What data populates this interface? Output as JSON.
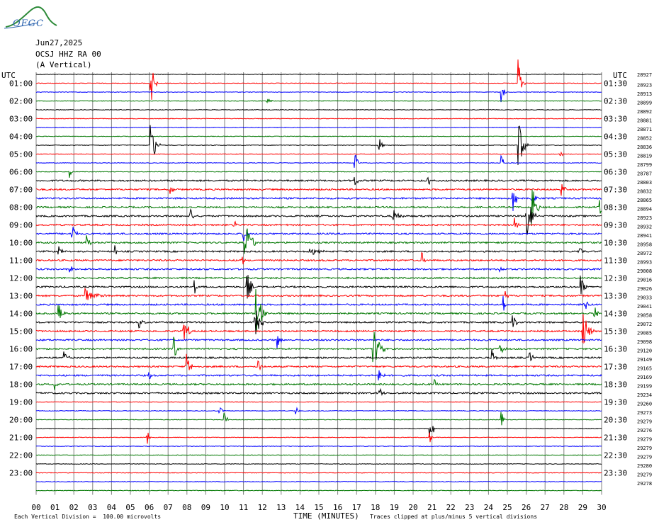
{
  "header": {
    "logo_text": "OFGC",
    "date": "Jun27,2025",
    "station": "OCSJ HHZ RA 00",
    "component": "(A Vertical)",
    "utc_left": "UTC",
    "utc_right": "UTC"
  },
  "footer": {
    "scale_note": "Each Vertical Division =  100.00 microvolts",
    "x_axis_title": "TIME (MINUTES)",
    "clip_note": "Traces clipped at plus/minus 5 vertical divisions"
  },
  "colors": {
    "trace_cycle": [
      "#000000",
      "#ff0000",
      "#0000ff",
      "#007700"
    ],
    "grid": "#808080",
    "logo": "#2f66b0"
  },
  "chart_data": {
    "type": "line",
    "title": "",
    "x_label": "TIME (MINUTES)",
    "x_range": [
      0,
      30
    ],
    "x_ticks": [
      "00",
      "01",
      "02",
      "03",
      "04",
      "05",
      "06",
      "07",
      "08",
      "09",
      "10",
      "11",
      "12",
      "13",
      "14",
      "15",
      "16",
      "17",
      "18",
      "19",
      "20",
      "21",
      "22",
      "23",
      "24",
      "25",
      "26",
      "27",
      "28",
      "29",
      "30"
    ],
    "left_hour_labels": [
      "01:00",
      "02:00",
      "03:00",
      "04:00",
      "05:00",
      "06:00",
      "07:00",
      "08:00",
      "09:00",
      "10:00",
      "11:00",
      "12:00",
      "13:00",
      "14:00",
      "15:00",
      "16:00",
      "17:00",
      "18:00",
      "19:00",
      "20:00",
      "21:00",
      "22:00",
      "23:00"
    ],
    "right_hour_labels": [
      "01:30",
      "02:30",
      "03:30",
      "04:30",
      "05:30",
      "06:30",
      "07:30",
      "08:30",
      "09:30",
      "10:30",
      "11:30",
      "12:30",
      "13:30",
      "14:30",
      "15:30",
      "16:30",
      "17:30",
      "18:30",
      "19:30",
      "20:30",
      "21:30",
      "22:30",
      "23:30"
    ],
    "traces_per_hour": 2,
    "trace_count": 48,
    "right_values": [
      "28927",
      "28923",
      "28913",
      "28899",
      "28892",
      "28881",
      "28871",
      "28852",
      "28836",
      "28819",
      "28799",
      "28787",
      "28803",
      "28832",
      "28865",
      "28894",
      "28923",
      "28932",
      "28941",
      "28958",
      "28972",
      "28993",
      "29008",
      "29016",
      "29026",
      "29033",
      "29041",
      "29058",
      "29072",
      "29085",
      "29098",
      "29120",
      "29149",
      "29165",
      "29169",
      "29199",
      "29234",
      "29260",
      "29273",
      "29279",
      "29276",
      "29279",
      "29279",
      "29279",
      "29280",
      "29279",
      "29278"
    ],
    "events": [
      {
        "trace": 1,
        "minute": 6.1,
        "amp": 5,
        "width": 0.35
      },
      {
        "trace": 1,
        "minute": 25.6,
        "amp": 5,
        "width": 0.35
      },
      {
        "trace": 2,
        "minute": 24.7,
        "amp": 2.2,
        "width": 0.25
      },
      {
        "trace": 3,
        "minute": 12.3,
        "amp": 1,
        "width": 0.3
      },
      {
        "trace": 8,
        "minute": 6.1,
        "amp": 5,
        "width": 0.5
      },
      {
        "trace": 8,
        "minute": 18.2,
        "amp": 1.8,
        "width": 0.3
      },
      {
        "trace": 8,
        "minute": 25.6,
        "amp": 5,
        "width": 0.5
      },
      {
        "trace": 9,
        "minute": 27.8,
        "amp": 1.6,
        "width": 0.2
      },
      {
        "trace": 10,
        "minute": 16.9,
        "amp": 2.5,
        "width": 0.3
      },
      {
        "trace": 10,
        "minute": 24.7,
        "amp": 1.5,
        "width": 0.3
      },
      {
        "trace": 11,
        "minute": 1.8,
        "amp": 1.2,
        "width": 0.2
      },
      {
        "trace": 12,
        "minute": 16.9,
        "amp": 1.5,
        "width": 0.3
      },
      {
        "trace": 12,
        "minute": 20.8,
        "amp": 1.6,
        "width": 0.3
      },
      {
        "trace": 13,
        "minute": 7.1,
        "amp": 1.5,
        "width": 0.3
      },
      {
        "trace": 13,
        "minute": 27.9,
        "amp": 1.5,
        "width": 0.3
      },
      {
        "trace": 14,
        "minute": 25.3,
        "amp": 3,
        "width": 0.4
      },
      {
        "trace": 14,
        "minute": 26.3,
        "amp": 2.5,
        "width": 0.4
      },
      {
        "trace": 15,
        "minute": 26.3,
        "amp": 5,
        "width": 0.5
      },
      {
        "trace": 15,
        "minute": 29.9,
        "amp": 2,
        "width": 0.3
      },
      {
        "trace": 16,
        "minute": 26.0,
        "amp": 5,
        "width": 0.6
      },
      {
        "trace": 16,
        "minute": 18.9,
        "amp": 2,
        "width": 0.6
      },
      {
        "trace": 16,
        "minute": 8.2,
        "amp": 1.5,
        "width": 0.3
      },
      {
        "trace": 17,
        "minute": 10.5,
        "amp": 1.5,
        "width": 0.3
      },
      {
        "trace": 17,
        "minute": 25.4,
        "amp": 1.8,
        "width": 0.3
      },
      {
        "trace": 18,
        "minute": 1.9,
        "amp": 3,
        "width": 0.3
      },
      {
        "trace": 18,
        "minute": 11.0,
        "amp": 2,
        "width": 0.3
      },
      {
        "trace": 19,
        "minute": 11.1,
        "amp": 5,
        "width": 0.6
      },
      {
        "trace": 19,
        "minute": 2.7,
        "amp": 1.5,
        "width": 0.3
      },
      {
        "trace": 20,
        "minute": 14.5,
        "amp": 1.5,
        "width": 0.8
      },
      {
        "trace": 20,
        "minute": 1.2,
        "amp": 1.5,
        "width": 0.3
      },
      {
        "trace": 20,
        "minute": 4.2,
        "amp": 1.5,
        "width": 0.3
      },
      {
        "trace": 20,
        "minute": 28.8,
        "amp": 1.5,
        "width": 0.3
      },
      {
        "trace": 21,
        "minute": 20.5,
        "amp": 1.5,
        "width": 0.2
      },
      {
        "trace": 21,
        "minute": 10.9,
        "amp": 1.5,
        "width": 0.3
      },
      {
        "trace": 22,
        "minute": 1.8,
        "amp": 1.5,
        "width": 0.2
      },
      {
        "trace": 22,
        "minute": 24.6,
        "amp": 1.5,
        "width": 0.2
      },
      {
        "trace": 24,
        "minute": 11.2,
        "amp": 3.5,
        "width": 0.4
      },
      {
        "trace": 24,
        "minute": 8.4,
        "amp": 2,
        "width": 0.2
      },
      {
        "trace": 24,
        "minute": 28.9,
        "amp": 2.5,
        "width": 0.4
      },
      {
        "trace": 25,
        "minute": 2.6,
        "amp": 1.6,
        "width": 1.2
      },
      {
        "trace": 25,
        "minute": 24.9,
        "amp": 1.5,
        "width": 0.3
      },
      {
        "trace": 26,
        "minute": 24.8,
        "amp": 1.8,
        "width": 0.2
      },
      {
        "trace": 26,
        "minute": 29.1,
        "amp": 1.8,
        "width": 0.3
      },
      {
        "trace": 27,
        "minute": 1.2,
        "amp": 2.5,
        "width": 0.4
      },
      {
        "trace": 27,
        "minute": 11.7,
        "amp": 5,
        "width": 0.6
      },
      {
        "trace": 27,
        "minute": 29.6,
        "amp": 1.8,
        "width": 0.3
      },
      {
        "trace": 28,
        "minute": 5.5,
        "amp": 1.5,
        "width": 0.3
      },
      {
        "trace": 28,
        "minute": 11.6,
        "amp": 5,
        "width": 0.6
      },
      {
        "trace": 28,
        "minute": 25.3,
        "amp": 2,
        "width": 0.3
      },
      {
        "trace": 29,
        "minute": 7.8,
        "amp": 5,
        "width": 0.4
      },
      {
        "trace": 29,
        "minute": 29.0,
        "amp": 5,
        "width": 0.6
      },
      {
        "trace": 30,
        "minute": 12.8,
        "amp": 2,
        "width": 0.3
      },
      {
        "trace": 31,
        "minute": 7.3,
        "amp": 2.5,
        "width": 0.4
      },
      {
        "trace": 31,
        "minute": 17.9,
        "amp": 5,
        "width": 0.6
      },
      {
        "trace": 31,
        "minute": 24.6,
        "amp": 2,
        "width": 0.4
      },
      {
        "trace": 32,
        "minute": 1.5,
        "amp": 1.5,
        "width": 0.3
      },
      {
        "trace": 32,
        "minute": 24.2,
        "amp": 1.8,
        "width": 0.3
      },
      {
        "trace": 32,
        "minute": 26.2,
        "amp": 1.5,
        "width": 0.3
      },
      {
        "trace": 33,
        "minute": 8.0,
        "amp": 5,
        "width": 0.3
      },
      {
        "trace": 33,
        "minute": 11.8,
        "amp": 1.6,
        "width": 0.3
      },
      {
        "trace": 34,
        "minute": 18.2,
        "amp": 2,
        "width": 0.3
      },
      {
        "trace": 34,
        "minute": 6.0,
        "amp": 1.5,
        "width": 0.2
      },
      {
        "trace": 35,
        "minute": 1.0,
        "amp": 1.6,
        "width": 0.2
      },
      {
        "trace": 35,
        "minute": 21.1,
        "amp": 1.5,
        "width": 0.2
      },
      {
        "trace": 36,
        "minute": 18.2,
        "amp": 1.5,
        "width": 0.3
      },
      {
        "trace": 38,
        "minute": 9.7,
        "amp": 1.2,
        "width": 0.3
      },
      {
        "trace": 38,
        "minute": 13.8,
        "amp": 1,
        "width": 0.2
      },
      {
        "trace": 39,
        "minute": 10.0,
        "amp": 1.3,
        "width": 0.3
      },
      {
        "trace": 39,
        "minute": 24.7,
        "amp": 2,
        "width": 0.3
      },
      {
        "trace": 40,
        "minute": 20.9,
        "amp": 4,
        "width": 0.3
      },
      {
        "trace": 41,
        "minute": 20.9,
        "amp": 1.5,
        "width": 0.2
      },
      {
        "trace": 41,
        "minute": 5.9,
        "amp": 2.2,
        "width": 0.2
      }
    ]
  }
}
